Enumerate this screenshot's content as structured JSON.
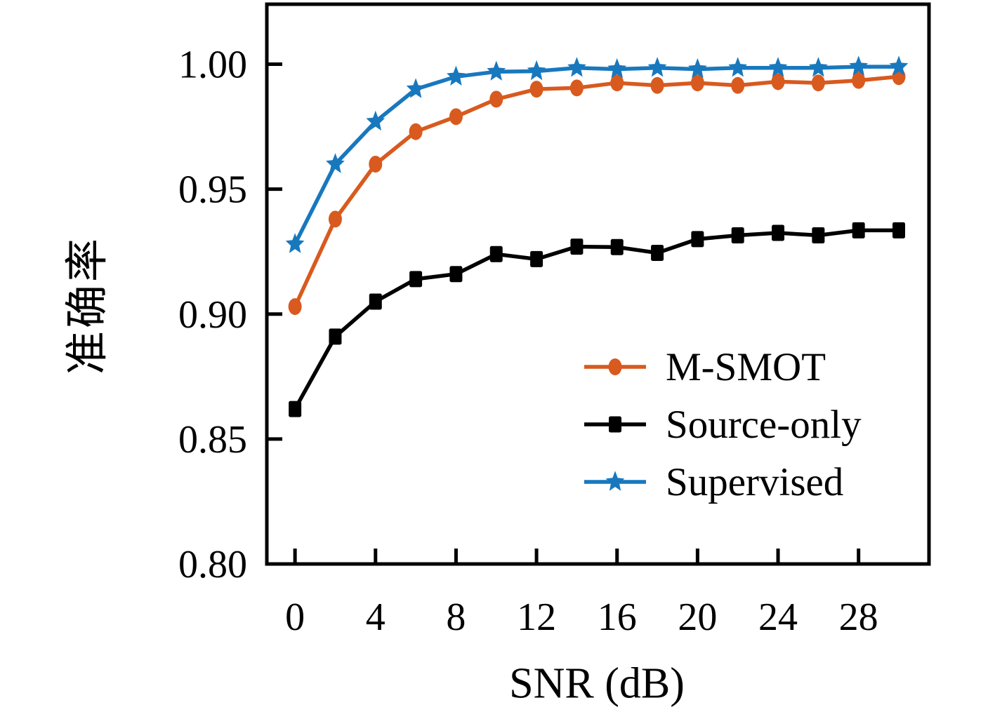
{
  "chart_data": {
    "type": "line",
    "title": "",
    "xlabel": "SNR (dB)",
    "ylabel": "准确率",
    "grid": false,
    "legend_position": "inside center-right",
    "xlim": [
      -1.4,
      31.5
    ],
    "ylim": [
      0.8,
      1.024
    ],
    "xticks": [
      0,
      4,
      8,
      12,
      16,
      20,
      24,
      28
    ],
    "yticks": [
      "0.80",
      "0.85",
      "0.90",
      "0.95",
      "1.00"
    ],
    "ytick_values": [
      0.8,
      0.85,
      0.9,
      0.95,
      1.0
    ],
    "x": [
      0,
      2,
      4,
      6,
      8,
      10,
      12,
      14,
      16,
      18,
      20,
      22,
      24,
      26,
      28,
      30
    ],
    "series": [
      {
        "name": "M-SMOT",
        "color": "#d85a1e",
        "marker": "circle",
        "values": [
          0.903,
          0.938,
          0.96,
          0.973,
          0.979,
          0.986,
          0.99,
          0.9905,
          0.9925,
          0.9915,
          0.9925,
          0.9915,
          0.993,
          0.9925,
          0.9935,
          0.995
        ]
      },
      {
        "name": "Source-only",
        "color": "#000000",
        "marker": "square",
        "values": [
          0.862,
          0.891,
          0.905,
          0.914,
          0.916,
          0.924,
          0.922,
          0.927,
          0.9268,
          0.9245,
          0.93,
          0.9315,
          0.9325,
          0.9315,
          0.9335,
          0.9335
        ]
      },
      {
        "name": "Supervised",
        "color": "#1878be",
        "marker": "star",
        "values": [
          0.928,
          0.96,
          0.977,
          0.99,
          0.995,
          0.997,
          0.9972,
          0.9985,
          0.998,
          0.9985,
          0.998,
          0.9985,
          0.9985,
          0.9985,
          0.999,
          0.999
        ]
      }
    ]
  }
}
